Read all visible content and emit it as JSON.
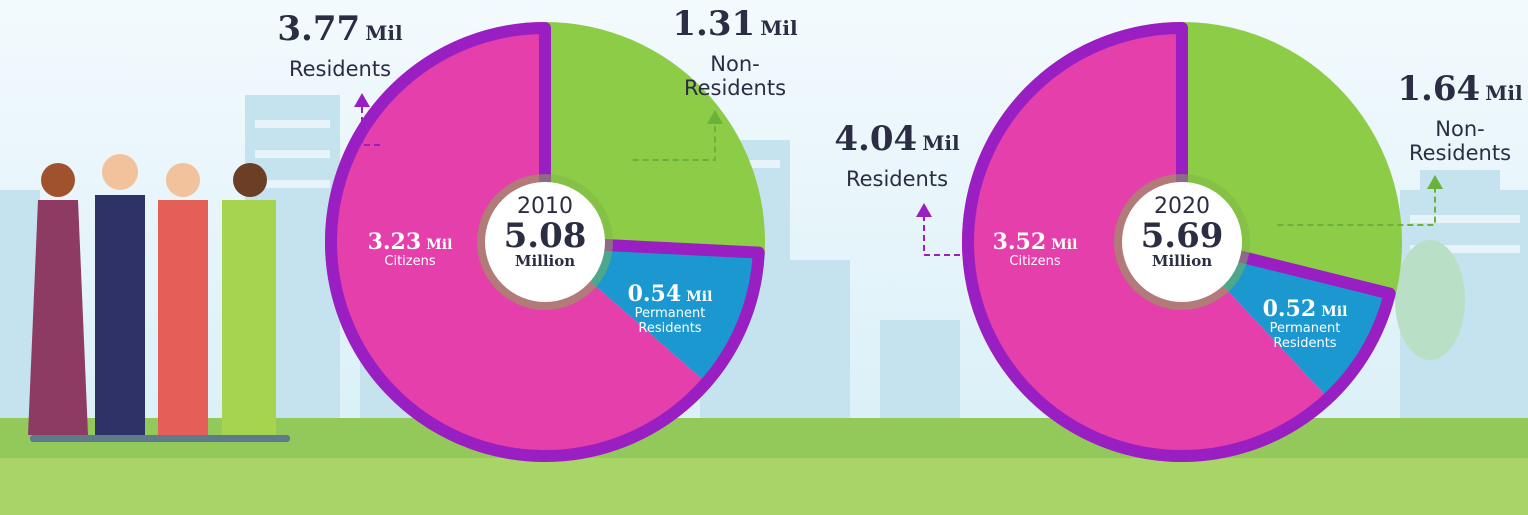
{
  "chart_data": [
    {
      "type": "pie",
      "year": "2010",
      "total": 5.08,
      "total_unit": "Million",
      "unit": "Mil",
      "slices": [
        {
          "name": "Non-Residents",
          "value": 1.31,
          "color": "#8dcc46"
        },
        {
          "name": "Permanent Residents",
          "value": 0.54,
          "color": "#1b98d0"
        },
        {
          "name": "Citizens",
          "value": 3.23,
          "color": "#e43faa"
        }
      ],
      "group": {
        "name": "Residents",
        "value": 3.77,
        "color": "#9a1fc2"
      }
    },
    {
      "type": "pie",
      "year": "2020",
      "total": 5.69,
      "total_unit": "Million",
      "unit": "Mil",
      "slices": [
        {
          "name": "Non-Residents",
          "value": 1.64,
          "color": "#8dcc46"
        },
        {
          "name": "Permanent Residents",
          "value": 0.52,
          "color": "#1b98d0"
        },
        {
          "name": "Citizens",
          "value": 3.52,
          "color": "#e43faa"
        }
      ],
      "group": {
        "name": "Residents",
        "value": 4.04,
        "color": "#9a1fc2"
      }
    }
  ]
}
